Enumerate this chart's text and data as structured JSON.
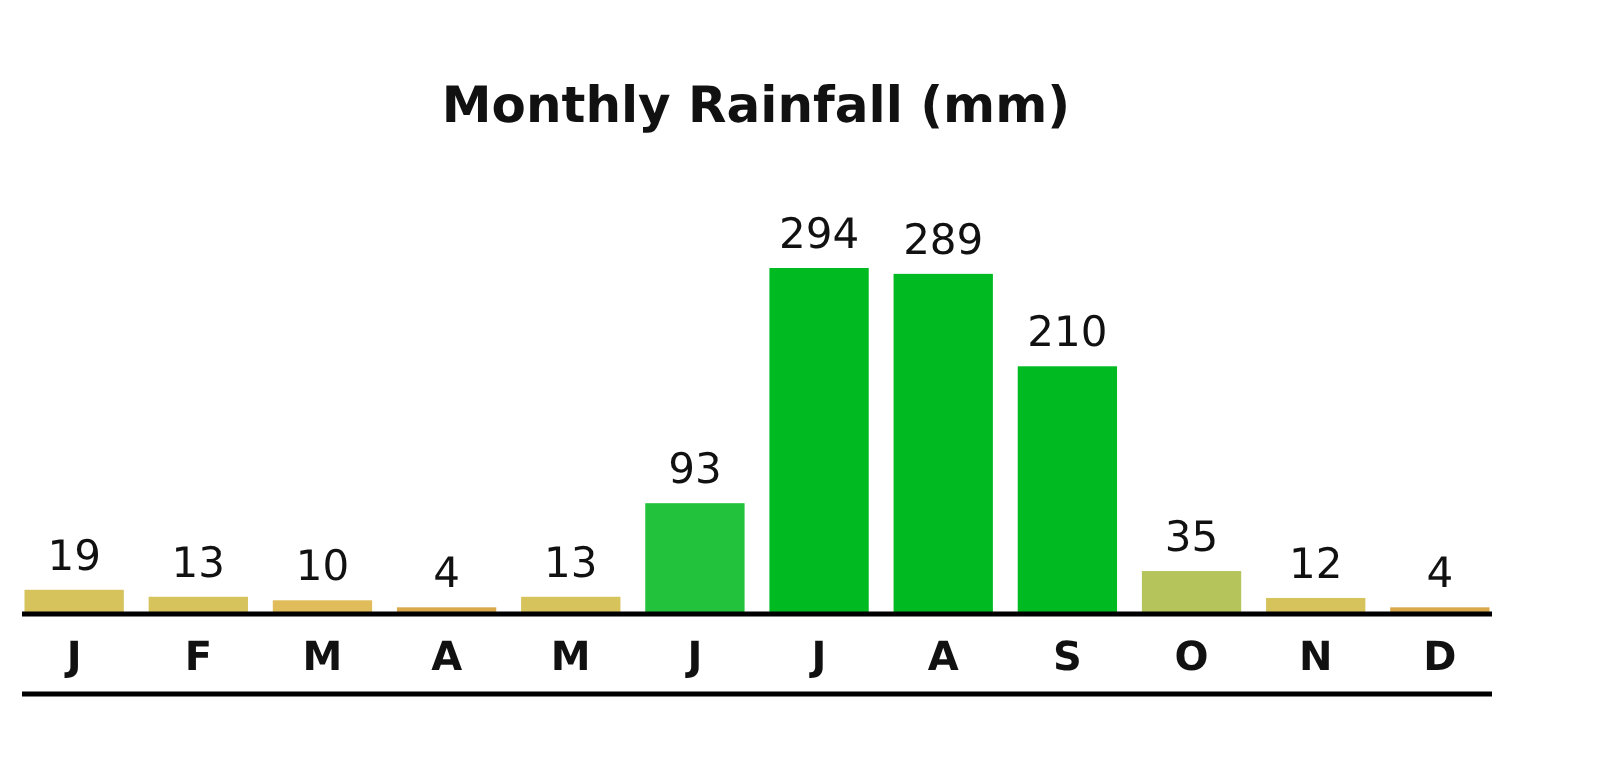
{
  "chart_data": {
    "type": "bar",
    "title": "Monthly Rainfall (mm)",
    "categories": [
      "J",
      "F",
      "M",
      "A",
      "M",
      "J",
      "J",
      "A",
      "S",
      "O",
      "N",
      "D"
    ],
    "values": [
      19,
      13,
      10,
      4,
      13,
      93,
      294,
      289,
      210,
      35,
      12,
      4
    ],
    "colors": [
      "#d6c35c",
      "#d6c35c",
      "#e0bd5a",
      "#d9a84c",
      "#d6c35c",
      "#22c23c",
      "#00ba22",
      "#00ba22",
      "#00ba22",
      "#b6c45c",
      "#d6c35c",
      "#d9a84c"
    ],
    "data_labels": true
  }
}
